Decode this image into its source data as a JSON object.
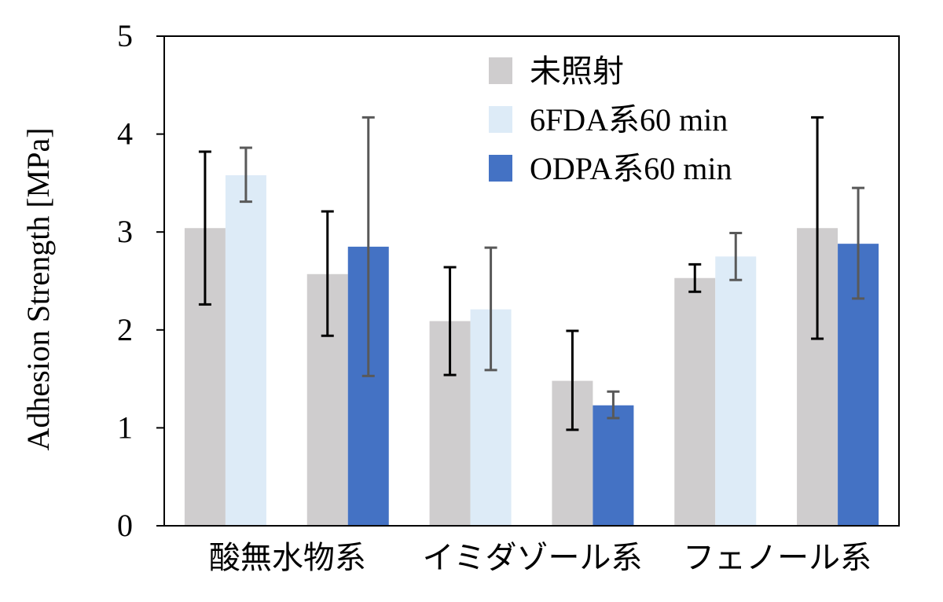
{
  "chart_data": {
    "type": "bar",
    "title": "",
    "xlabel": "",
    "ylabel": "Adhesion Strength [MPa]",
    "ylim": [
      0,
      5
    ],
    "yticks": [
      "0",
      "1",
      "2",
      "3",
      "4",
      "5"
    ],
    "grid": false,
    "legend_position": "top-right",
    "categories": [
      "酸無水物系",
      "イミダゾール系",
      "フェノール系"
    ],
    "groups": [
      {
        "bars": [
          {
            "series": "未照射",
            "value": 3.04,
            "err_low": 2.26,
            "err_high": 3.82
          },
          {
            "series": "6FDA系60 min",
            "value": 3.58,
            "err_low": 3.31,
            "err_high": 3.86
          }
        ]
      },
      {
        "bars": [
          {
            "series": "未照射",
            "value": 2.57,
            "err_low": 1.94,
            "err_high": 3.21
          },
          {
            "series": "ODPA系60 min",
            "value": 2.85,
            "err_low": 1.53,
            "err_high": 4.17
          }
        ]
      },
      {
        "bars": [
          {
            "series": "未照射",
            "value": 2.09,
            "err_low": 1.54,
            "err_high": 2.64
          },
          {
            "series": "6FDA系60 min",
            "value": 2.21,
            "err_low": 1.59,
            "err_high": 2.84
          }
        ]
      },
      {
        "bars": [
          {
            "series": "未照射",
            "value": 1.48,
            "err_low": 0.98,
            "err_high": 1.99
          },
          {
            "series": "ODPA系60 min",
            "value": 1.23,
            "err_low": 1.1,
            "err_high": 1.37
          }
        ]
      },
      {
        "bars": [
          {
            "series": "未照射",
            "value": 2.53,
            "err_low": 2.39,
            "err_high": 2.67
          },
          {
            "series": "6FDA系60 min",
            "value": 2.75,
            "err_low": 2.51,
            "err_high": 2.99
          }
        ]
      },
      {
        "bars": [
          {
            "series": "未照射",
            "value": 3.04,
            "err_low": 1.91,
            "err_high": 4.17
          },
          {
            "series": "ODPA系60 min",
            "value": 2.88,
            "err_low": 2.32,
            "err_high": 3.45
          }
        ]
      }
    ],
    "series": [
      {
        "name": "未照射",
        "color": "#cfcdce"
      },
      {
        "name": "6FDA系60 min",
        "color": "#ddebf7"
      },
      {
        "name": "ODPA系60 min",
        "color": "#4472c4"
      }
    ],
    "error_bar_colors": {
      "未照射": "#000000",
      "6FDA系60 min": "#595959",
      "ODPA系60 min": "#595959"
    }
  }
}
